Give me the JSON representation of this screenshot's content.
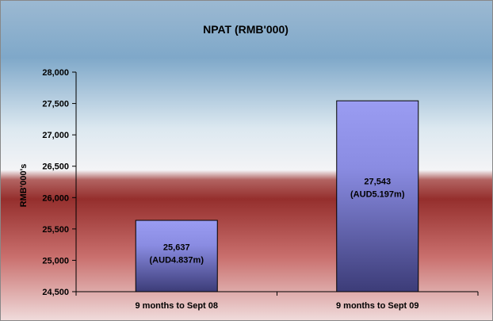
{
  "chart_data": {
    "type": "bar",
    "title": "NPAT (RMB'000)",
    "ylabel": "RMB'000's",
    "xlabel": "",
    "categories": [
      "9 months to Sept 08",
      "9 months to Sept 09"
    ],
    "values": [
      25637,
      27543
    ],
    "data_labels": [
      {
        "value": "25,637",
        "aud": "(AUD4.837m)"
      },
      {
        "value": "27,543",
        "aud": "(AUD5.197m)"
      }
    ],
    "ylim": [
      24500,
      28000
    ],
    "y_ticks": [
      24500,
      25000,
      25500,
      26000,
      26500,
      27000,
      27500,
      28000
    ],
    "y_tick_labels": [
      "24,500",
      "25,000",
      "25,500",
      "26,000",
      "26,500",
      "27,000",
      "27,500",
      "28,000"
    ],
    "grid": false,
    "legend": "none",
    "colors": {
      "bar_top": "#9a9cf2",
      "bar_bottom": "#3c3c78",
      "bg_top": "#7fa8c9",
      "bg_white": "#f4f4f6",
      "bg_red": "#952f2d",
      "bg_bottom": "#f0dcdc"
    }
  }
}
